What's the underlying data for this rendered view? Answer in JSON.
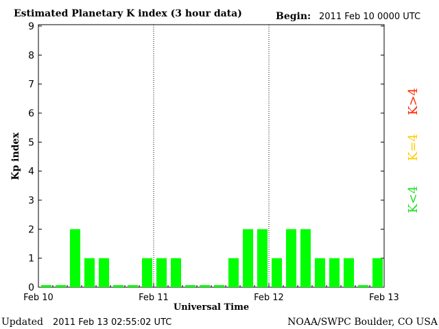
{
  "title": "Estimated Planetary K index (3 hour data)",
  "begin_label": "Begin:",
  "begin_value": "2011 Feb 10 0000 UTC",
  "updated_label": "Updated",
  "updated_value": "2011 Feb 13 02:55:02 UTC",
  "credit": "NOAA/SWPC Boulder, CO USA",
  "legend": {
    "high": {
      "text": "K>4",
      "color": "#ff2a00"
    },
    "mid": {
      "text": "K=4",
      "color": "#ffcc00"
    },
    "low": {
      "text": "K<4",
      "color": "#22dd22"
    }
  },
  "chart_data": {
    "type": "bar",
    "title": "Estimated Planetary K index (3 hour data)",
    "xlabel": "Universal Time",
    "ylabel": "Kp index",
    "ylim": [
      0,
      9
    ],
    "yticks": [
      "0",
      "1",
      "2",
      "3",
      "4",
      "5",
      "6",
      "7",
      "8",
      "9"
    ],
    "xtick_labels": [
      "Feb 10",
      "Feb 11",
      "Feb 12",
      "Feb 13"
    ],
    "day_dividers": [
      "Feb 11",
      "Feb 12"
    ],
    "bar_color": "#00ff00",
    "values": [
      0,
      0,
      2,
      1,
      1,
      0,
      0,
      1,
      1,
      1,
      0,
      0,
      0,
      1,
      2,
      2,
      1,
      2,
      2,
      1,
      1,
      1,
      0,
      1
    ]
  }
}
